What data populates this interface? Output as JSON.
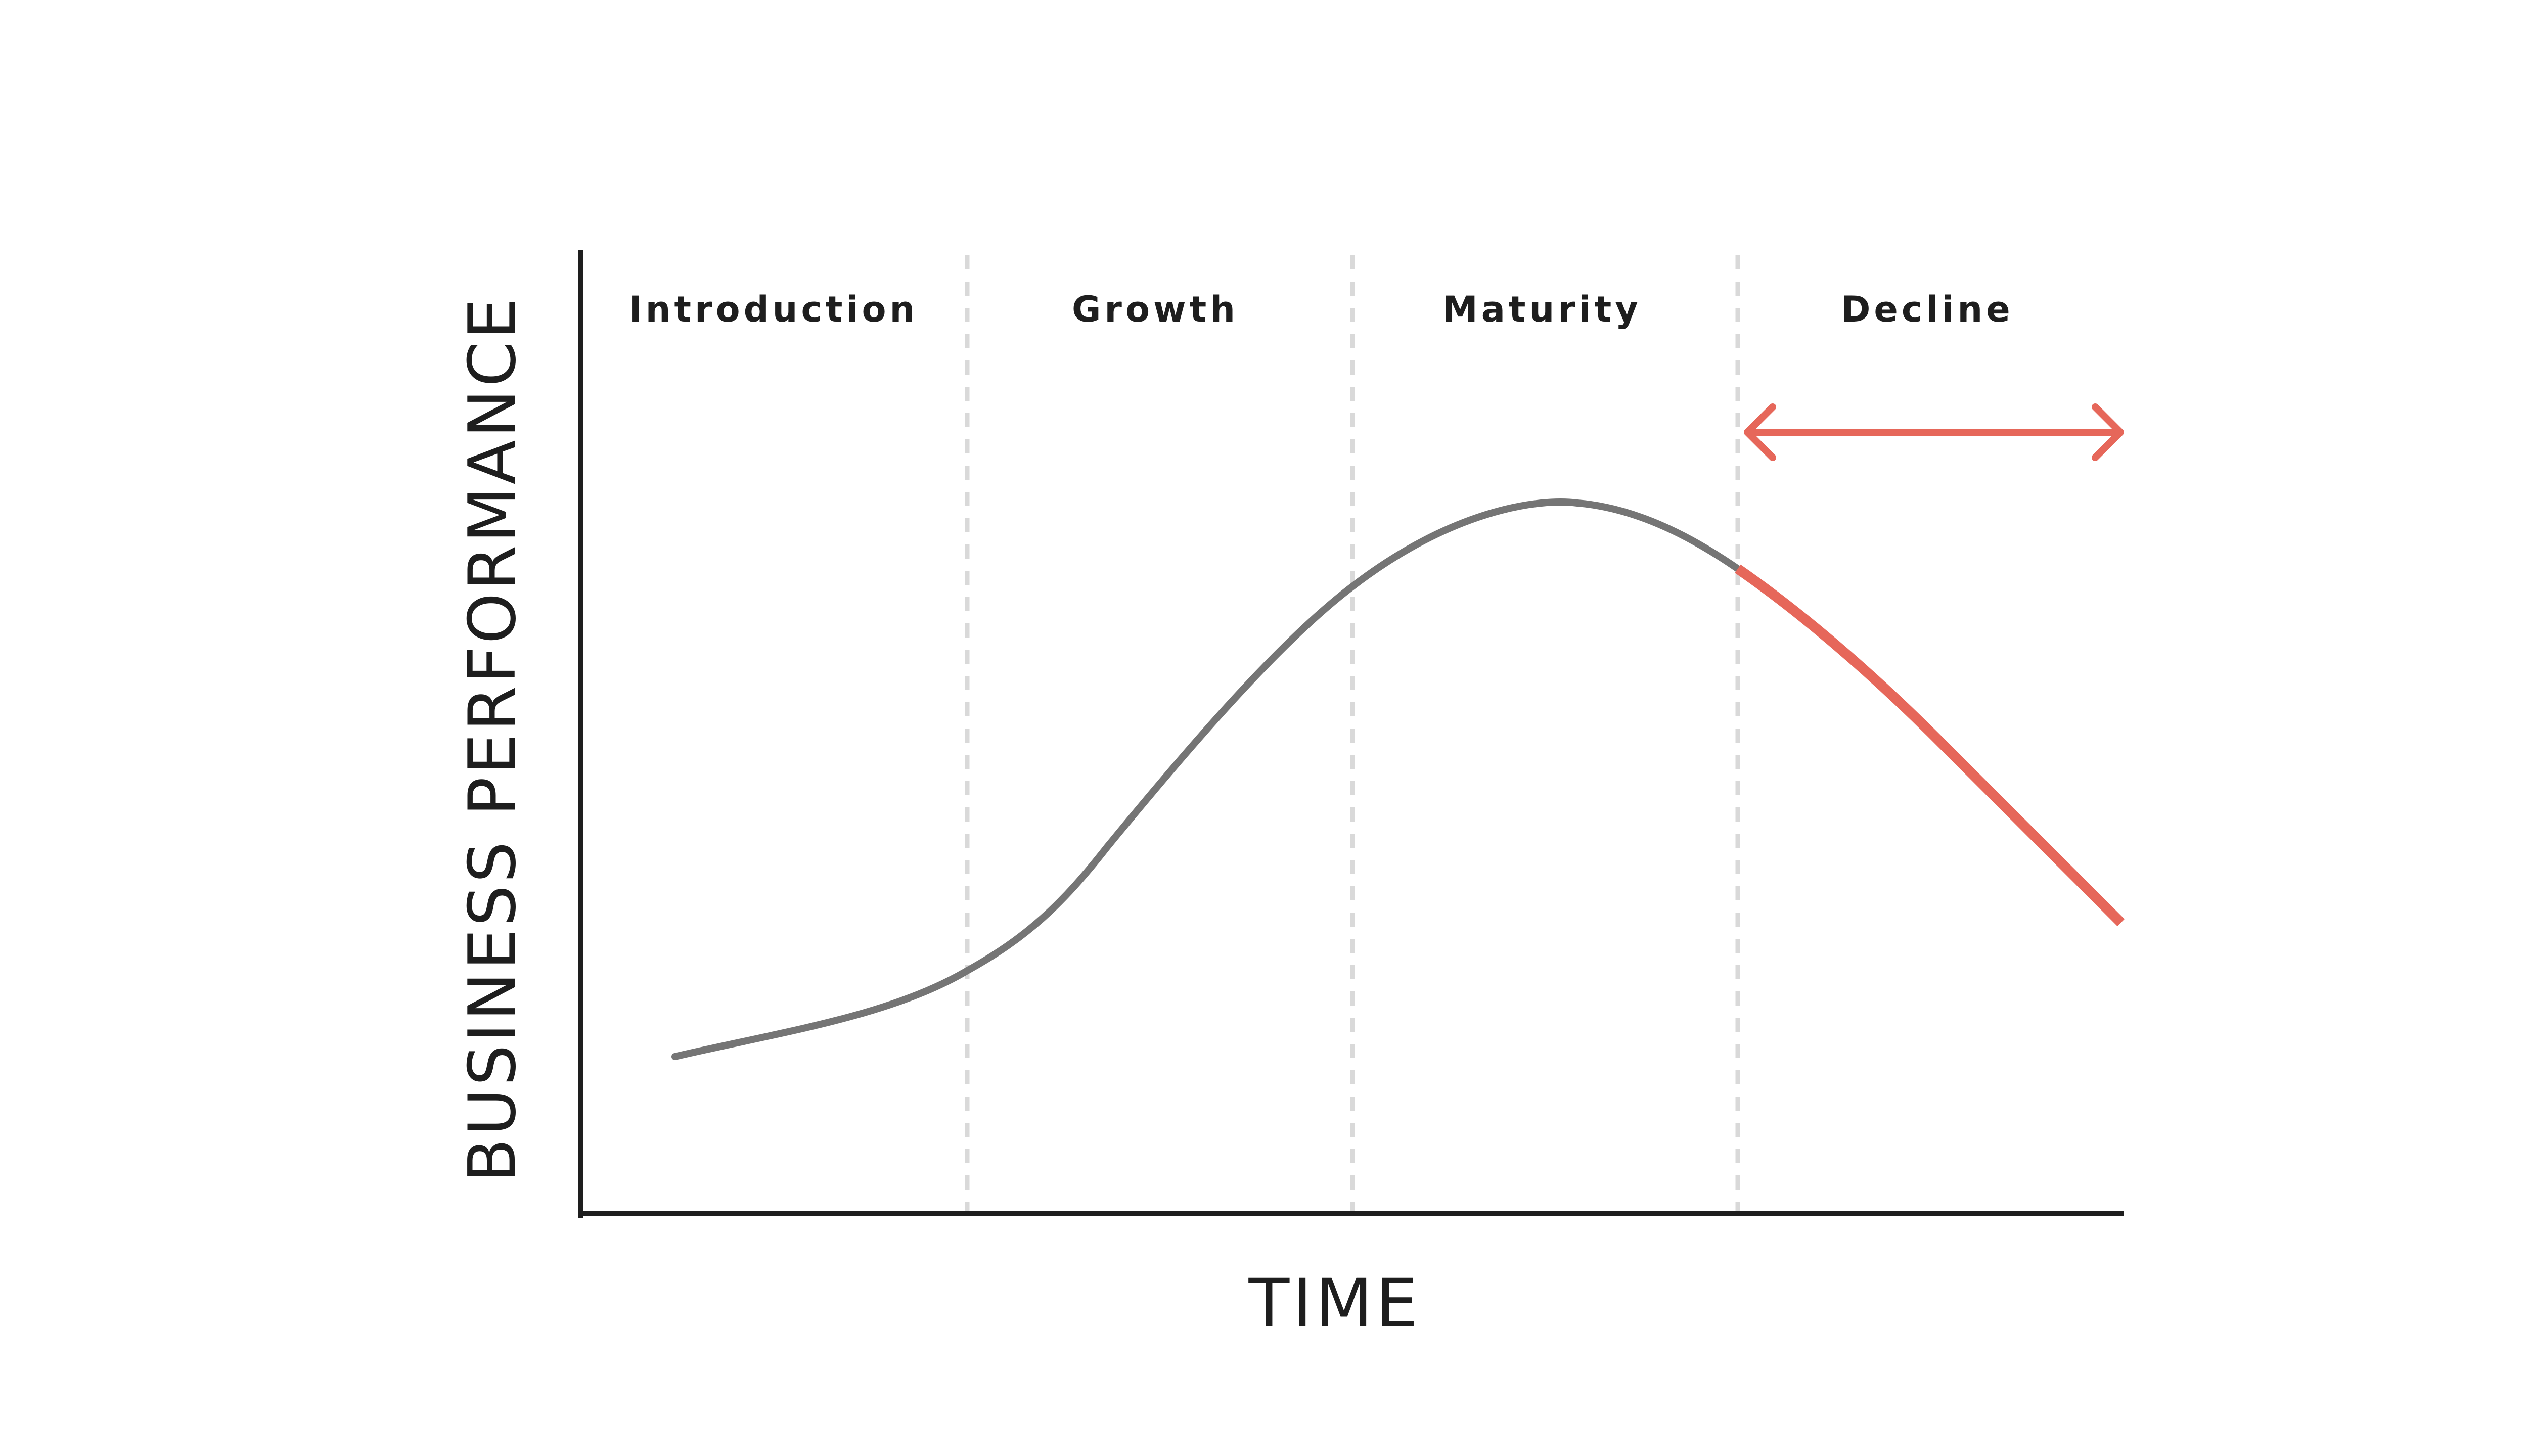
{
  "diagram": {
    "stages": [
      {
        "label": "Introduction"
      },
      {
        "label": "Growth"
      },
      {
        "label": "Maturity"
      },
      {
        "label": "Decline"
      }
    ],
    "x_axis_label": "TIME",
    "y_axis_label": "BUSINESS PERFORMANCE",
    "colors": {
      "axis": "#1e1e1e",
      "curve": "#757575",
      "decline": "#e6675a",
      "divider": "#d9d9d9",
      "text": "#1e1e1e"
    }
  }
}
